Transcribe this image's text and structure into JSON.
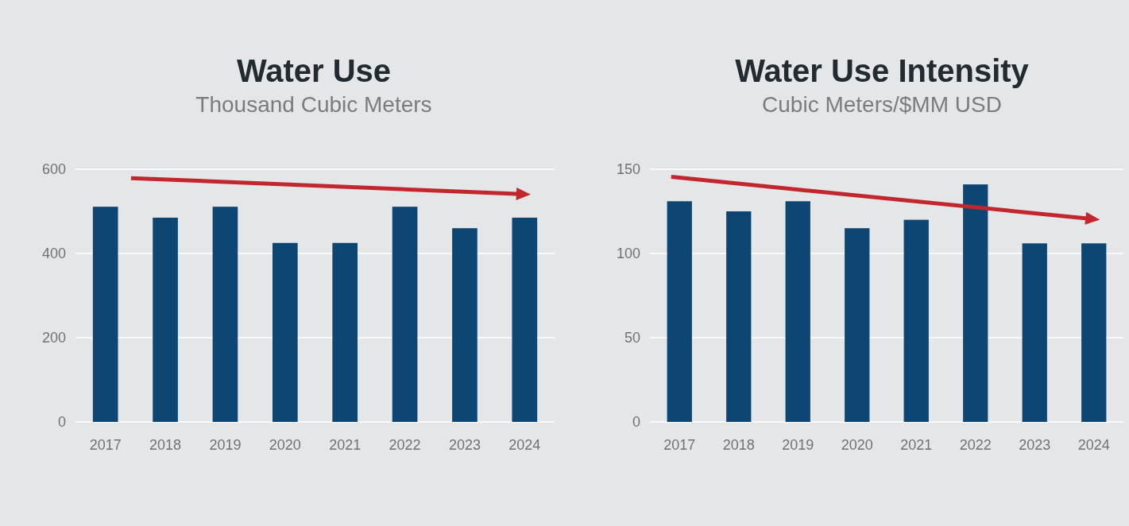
{
  "chart_data": [
    {
      "type": "bar",
      "title": "Water Use",
      "subtitle": "Thousand Cubic Meters",
      "categories": [
        "2017",
        "2018",
        "2019",
        "2020",
        "2021",
        "2022",
        "2023",
        "2024"
      ],
      "values": [
        511,
        485,
        511,
        425,
        425,
        511,
        460,
        485
      ],
      "color": "#0d4573",
      "ylim": [
        0,
        600
      ],
      "yticks": [
        0,
        200,
        400,
        600
      ],
      "grid": "y"
    },
    {
      "type": "bar",
      "title": "Water Use Intensity",
      "subtitle": "Cubic Meters/$MM USD",
      "categories": [
        "2017",
        "2018",
        "2019",
        "2020",
        "2021",
        "2022",
        "2023",
        "2024"
      ],
      "values": [
        131,
        125,
        131,
        115,
        120,
        141,
        106,
        106
      ],
      "color": "#0d4573",
      "ylim": [
        0,
        150
      ],
      "yticks": [
        0,
        50,
        100,
        150
      ],
      "grid": "y"
    }
  ]
}
